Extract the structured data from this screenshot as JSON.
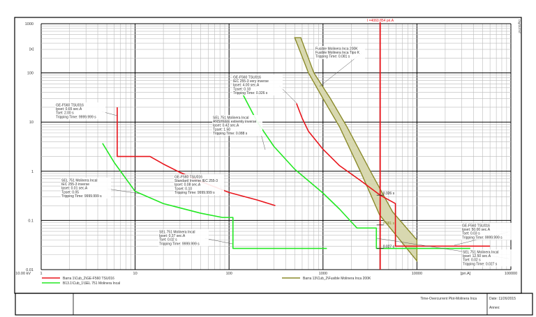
{
  "chart_data": {
    "type": "line",
    "title": "Time-Overcurrent Plot-Molinera Inca",
    "xscale": "log",
    "yscale": "log",
    "xlim": [
      1,
      100000
    ],
    "ylim": [
      0.01,
      1000
    ],
    "xlabel": "[pri.A]",
    "ylabel": "[s]",
    "voltage_label": "10.00 kV",
    "x_ticks": [
      "1",
      "10",
      "100",
      "1000",
      "10000",
      "100000"
    ],
    "y_ticks": [
      "1000",
      "100",
      "10",
      "1",
      "0.1",
      "0.01"
    ],
    "grid": true,
    "legend_position": "bottom",
    "series": [
      {
        "name": "Barra 1\\Cub_2\\GE-F560 TSU016",
        "color": "#e8141b",
        "curves": [
          [
            [
              6.45,
              20
            ],
            [
              6.45,
              2
            ],
            [
              14.4,
              2
            ],
            [
              20,
              1.4
            ],
            [
              30,
              0.95
            ],
            [
              50,
              0.62
            ],
            [
              100,
              0.37
            ],
            [
              200,
              0.26
            ],
            [
              311,
              0.2
            ]
          ],
          [
            [
              522,
              24
            ],
            [
              600,
              12
            ],
            [
              700,
              6.5
            ],
            [
              1000,
              2.8
            ],
            [
              1500,
              1.3
            ],
            [
              2500,
              0.65
            ],
            [
              4060,
              0.326
            ],
            [
              5900,
              0.22
            ],
            [
              5900,
              0.03
            ],
            [
              60000,
              0.03
            ]
          ]
        ]
      },
      {
        "name": "B13.1\\Cub_1\\SEL 751 Molinera Incal",
        "color": "#22e822",
        "curves": [
          [
            [
              4.5,
              3.7
            ],
            [
              6,
              1.5
            ],
            [
              10,
              0.39
            ],
            [
              20,
              0.22
            ],
            [
              50,
              0.14
            ],
            [
              85,
              0.115
            ],
            [
              110,
              0.115
            ],
            [
              110,
              0.027
            ],
            [
              1100,
              0.027
            ]
          ],
          [
            [
              137,
              40
            ],
            [
              200,
              10
            ],
            [
              300,
              3.2
            ],
            [
              500,
              1.1
            ],
            [
              1000,
              0.36
            ],
            [
              1500,
              0.17
            ],
            [
              2300,
              0.07
            ],
            [
              3700,
              0.07
            ],
            [
              3700,
              0.027
            ],
            [
              37000,
              0.027
            ]
          ]
        ]
      },
      {
        "name": "Barra 13\\Cub_2\\Fusible Molinera Inca 200K",
        "color": "#8a8a2a",
        "fill": "#d8d8b0",
        "band_min": [
          [
            500,
            520
          ],
          [
            700,
            100
          ],
          [
            1000,
            30
          ],
          [
            1500,
            8
          ],
          [
            2500,
            1
          ],
          [
            4000,
            0.13
          ],
          [
            10000,
            0.015
          ]
        ],
        "band_max": [
          [
            580,
            520
          ],
          [
            800,
            100
          ],
          [
            1200,
            30
          ],
          [
            1800,
            8
          ],
          [
            3200,
            1
          ],
          [
            5500,
            0.15
          ],
          [
            10000,
            0.04
          ]
        ]
      }
    ],
    "marker": {
      "label": "I =4060.854 pri.A",
      "x": 4060,
      "color": "#e8141b",
      "points": [
        {
          "y": 0.326,
          "label": "0.326 s",
          "color": "#222"
        },
        {
          "y": 0.081,
          "label": "0.081 s",
          "color": "#8a8a2a"
        },
        {
          "y": 0.027,
          "label": "0.027 s",
          "color": "#222"
        }
      ]
    },
    "annotations": [
      {
        "lines": [
          "GE-F560 TSU016",
          "Ipset: 0.65 sec.A",
          "Tset: 2.00 s",
          "Tripping Time: 9999.999 s"
        ]
      },
      {
        "lines": [
          "GE-F560 TSU016",
          "Standard Inverse  IEC 255-3",
          "Ipset: 0.08 sec.A",
          "Tpset: 0.10",
          "Tripping Time: 9999.999 s"
        ]
      },
      {
        "lines": [
          "SEL 751 Molinera Incal",
          "ANSI/IEEE  extremly inverse",
          "Ipset: 0.42 sec.A",
          "Tpset: 1.50",
          "Tripping Time: 0.088 s"
        ]
      },
      {
        "lines": [
          "GE-F560 TSU016",
          "IEC 255-3 very inverse",
          "Ipset: 4.00 sec.A",
          "Tpset: 0.18",
          "Tripping Time: 0.326 s"
        ]
      },
      {
        "lines": [
          "Fusible Molinera Inca 200K",
          "Fusible Molinera Inca Tipo K",
          "Tripping Time: 0.081 s"
        ]
      },
      {
        "lines": [
          "SEL 751 Molinera Incal",
          "IEC 255-3 inverse",
          "Ipset: 0.01 sec.A",
          "Tpset: 0.05",
          "Tripping Time: 9999.999 s"
        ]
      },
      {
        "lines": [
          "SEL 751 Molinera Incal",
          "Ipset: 0.37 sec.A",
          "Tset: 0.02 s",
          "Tripping Time: 9999.999 s"
        ]
      },
      {
        "lines": [
          "GE-F560 TSU016",
          "Ipset: 50.00 sec.A",
          "Tset: 0.03 s",
          "Tripping Time: 9999.999 s"
        ]
      },
      {
        "lines": [
          "SEL 751 Molinera Incal",
          "Ipset: 12.50 sec.A",
          "Tset: 0.02 s",
          "Tripping Time: 0.027 s"
        ]
      }
    ]
  },
  "footer": {
    "title": "Time-Overcurrent Plot-Molinera Inca",
    "date": "Date: 11/26/2015",
    "annex": "Annex:"
  },
  "watermark": "DIgSILENT"
}
